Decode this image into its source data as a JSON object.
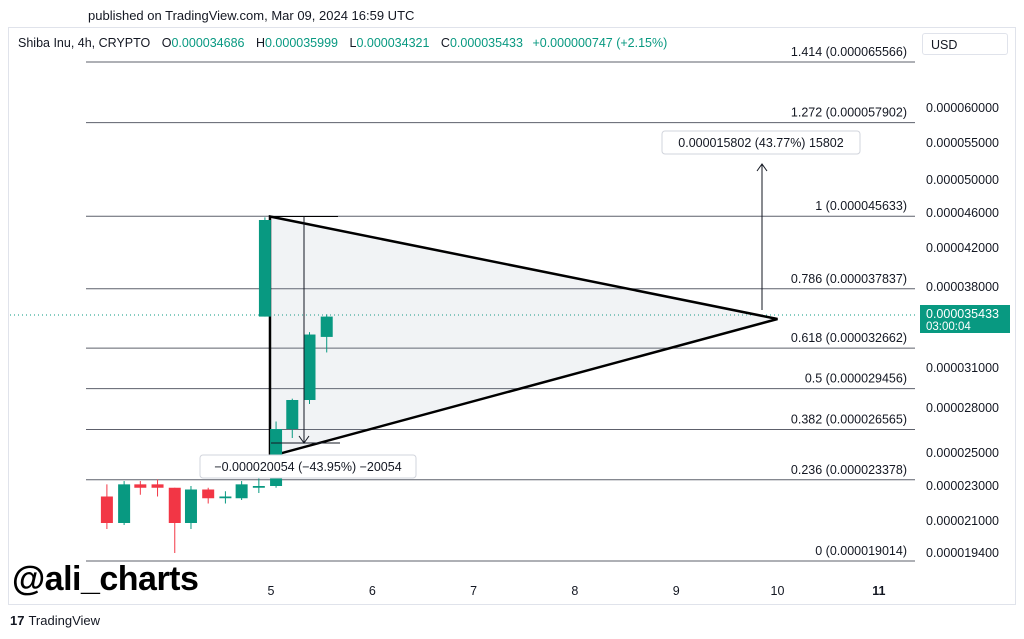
{
  "published": "published on TradingView.com, Mar 09, 2024 16:59 UTC",
  "legend": {
    "symbol": "Shiba Inu, 4h, CRYPTO",
    "open_label": "O",
    "open": "0.000034686",
    "high_label": "H",
    "high": "0.000035999",
    "low_label": "L",
    "low": "0.000034321",
    "close_label": "C",
    "close": "0.000035433",
    "change": "+0.000000747 (+2.15%)"
  },
  "currency": "USD",
  "watermark": "@ali_charts",
  "footer": {
    "logo": "17",
    "brand": "TradingView"
  },
  "colors": {
    "up": "#089981",
    "down": "#f23645",
    "price_label": "#089981"
  },
  "chart_data": {
    "type": "candlestick",
    "x_ticks": [
      {
        "day": 5,
        "label": "5"
      },
      {
        "day": 6,
        "label": "6"
      },
      {
        "day": 7,
        "label": "7"
      },
      {
        "day": 8,
        "label": "8"
      },
      {
        "day": 9,
        "label": "9"
      },
      {
        "day": 10,
        "label": "10"
      },
      {
        "day": 11,
        "label": "11",
        "bold": true
      }
    ],
    "y_ticks": [
      "0.000060000",
      "0.000055000",
      "0.000050000",
      "0.000046000",
      "0.000042000",
      "0.000038000",
      "0.000031000",
      "0.000028000",
      "0.000025000",
      "0.000023000",
      "0.000021000",
      "0.000019400"
    ],
    "fib_levels": [
      {
        "value": 6.5566e-05,
        "label": "1.414 (0.000065566)"
      },
      {
        "value": 5.7902e-05,
        "label": "1.272 (0.000057902)"
      },
      {
        "value": 4.5633e-05,
        "label": "1 (0.000045633)"
      },
      {
        "value": 3.7837e-05,
        "label": "0.786 (0.000037837)"
      },
      {
        "value": 3.2662e-05,
        "label": "0.618 (0.000032662)"
      },
      {
        "value": 2.9456e-05,
        "label": "0.5 (0.000029456)"
      },
      {
        "value": 2.6565e-05,
        "label": "0.382 (0.000026565)"
      },
      {
        "value": 2.3378e-05,
        "label": "0.236 (0.000023378)"
      },
      {
        "value": 1.9014e-05,
        "label": "0 (0.000019014)"
      }
    ],
    "current_price": {
      "value": "0.000035433",
      "countdown": "03:00:04"
    },
    "measure_up": {
      "label": "0.000015802 (43.77%) 15802"
    },
    "measure_down": {
      "label": "−0.000020054 (−43.95%) −20054"
    },
    "triangle": {
      "apex": {
        "day": 4.99,
        "price": 4.56e-05
      },
      "bottom": {
        "day": 4.99,
        "price": 2.48e-05
      },
      "tip": {
        "day": 10.0,
        "price": 3.51e-05
      }
    },
    "candles": [
      {
        "d": 3.38,
        "o": 2.24e-05,
        "h": 2.31e-05,
        "l": 2.06e-05,
        "c": 2.09e-05
      },
      {
        "d": 3.55,
        "o": 2.09e-05,
        "h": 2.33e-05,
        "l": 2.08e-05,
        "c": 2.31e-05
      },
      {
        "d": 3.71,
        "o": 2.31e-05,
        "h": 2.33e-05,
        "l": 2.25e-05,
        "c": 2.29e-05
      },
      {
        "d": 3.88,
        "o": 2.31e-05,
        "h": 2.34e-05,
        "l": 2.24e-05,
        "c": 2.29e-05
      },
      {
        "d": 4.05,
        "o": 2.29e-05,
        "h": 2.29e-05,
        "l": 1.94e-05,
        "c": 2.09e-05
      },
      {
        "d": 4.21,
        "o": 2.09e-05,
        "h": 2.3e-05,
        "l": 2.06e-05,
        "c": 2.28e-05
      },
      {
        "d": 4.38,
        "o": 2.28e-05,
        "h": 2.29e-05,
        "l": 2.2e-05,
        "c": 2.23e-05
      },
      {
        "d": 4.55,
        "o": 2.23e-05,
        "h": 2.27e-05,
        "l": 2.2e-05,
        "c": 2.24e-05
      },
      {
        "d": 4.71,
        "o": 2.23e-05,
        "h": 2.33e-05,
        "l": 2.22e-05,
        "c": 2.31e-05
      },
      {
        "d": 4.88,
        "o": 2.29e-05,
        "h": 2.35e-05,
        "l": 2.26e-05,
        "c": 2.3e-05
      },
      {
        "d": 5.05,
        "o": 2.3e-05,
        "h": 2.71e-05,
        "l": 2.29e-05,
        "c": 2.66e-05
      },
      {
        "d": 5.21,
        "o": 2.66e-05,
        "h": 2.87e-05,
        "l": 2.6e-05,
        "c": 2.86e-05
      },
      {
        "d": 5.38,
        "o": 2.86e-05,
        "h": 3.4e-05,
        "l": 2.83e-05,
        "c": 3.38e-05
      },
      {
        "d": 5.55,
        "o": 3.36e-05,
        "h": 3.55e-05,
        "l": 3.23e-05,
        "c": 3.53e-05
      },
      {
        "d": 4.94,
        "o": 3.53e-05,
        "h": 4.55e-05,
        "l": 3.53e-05,
        "c": 4.52e-05
      }
    ]
  }
}
